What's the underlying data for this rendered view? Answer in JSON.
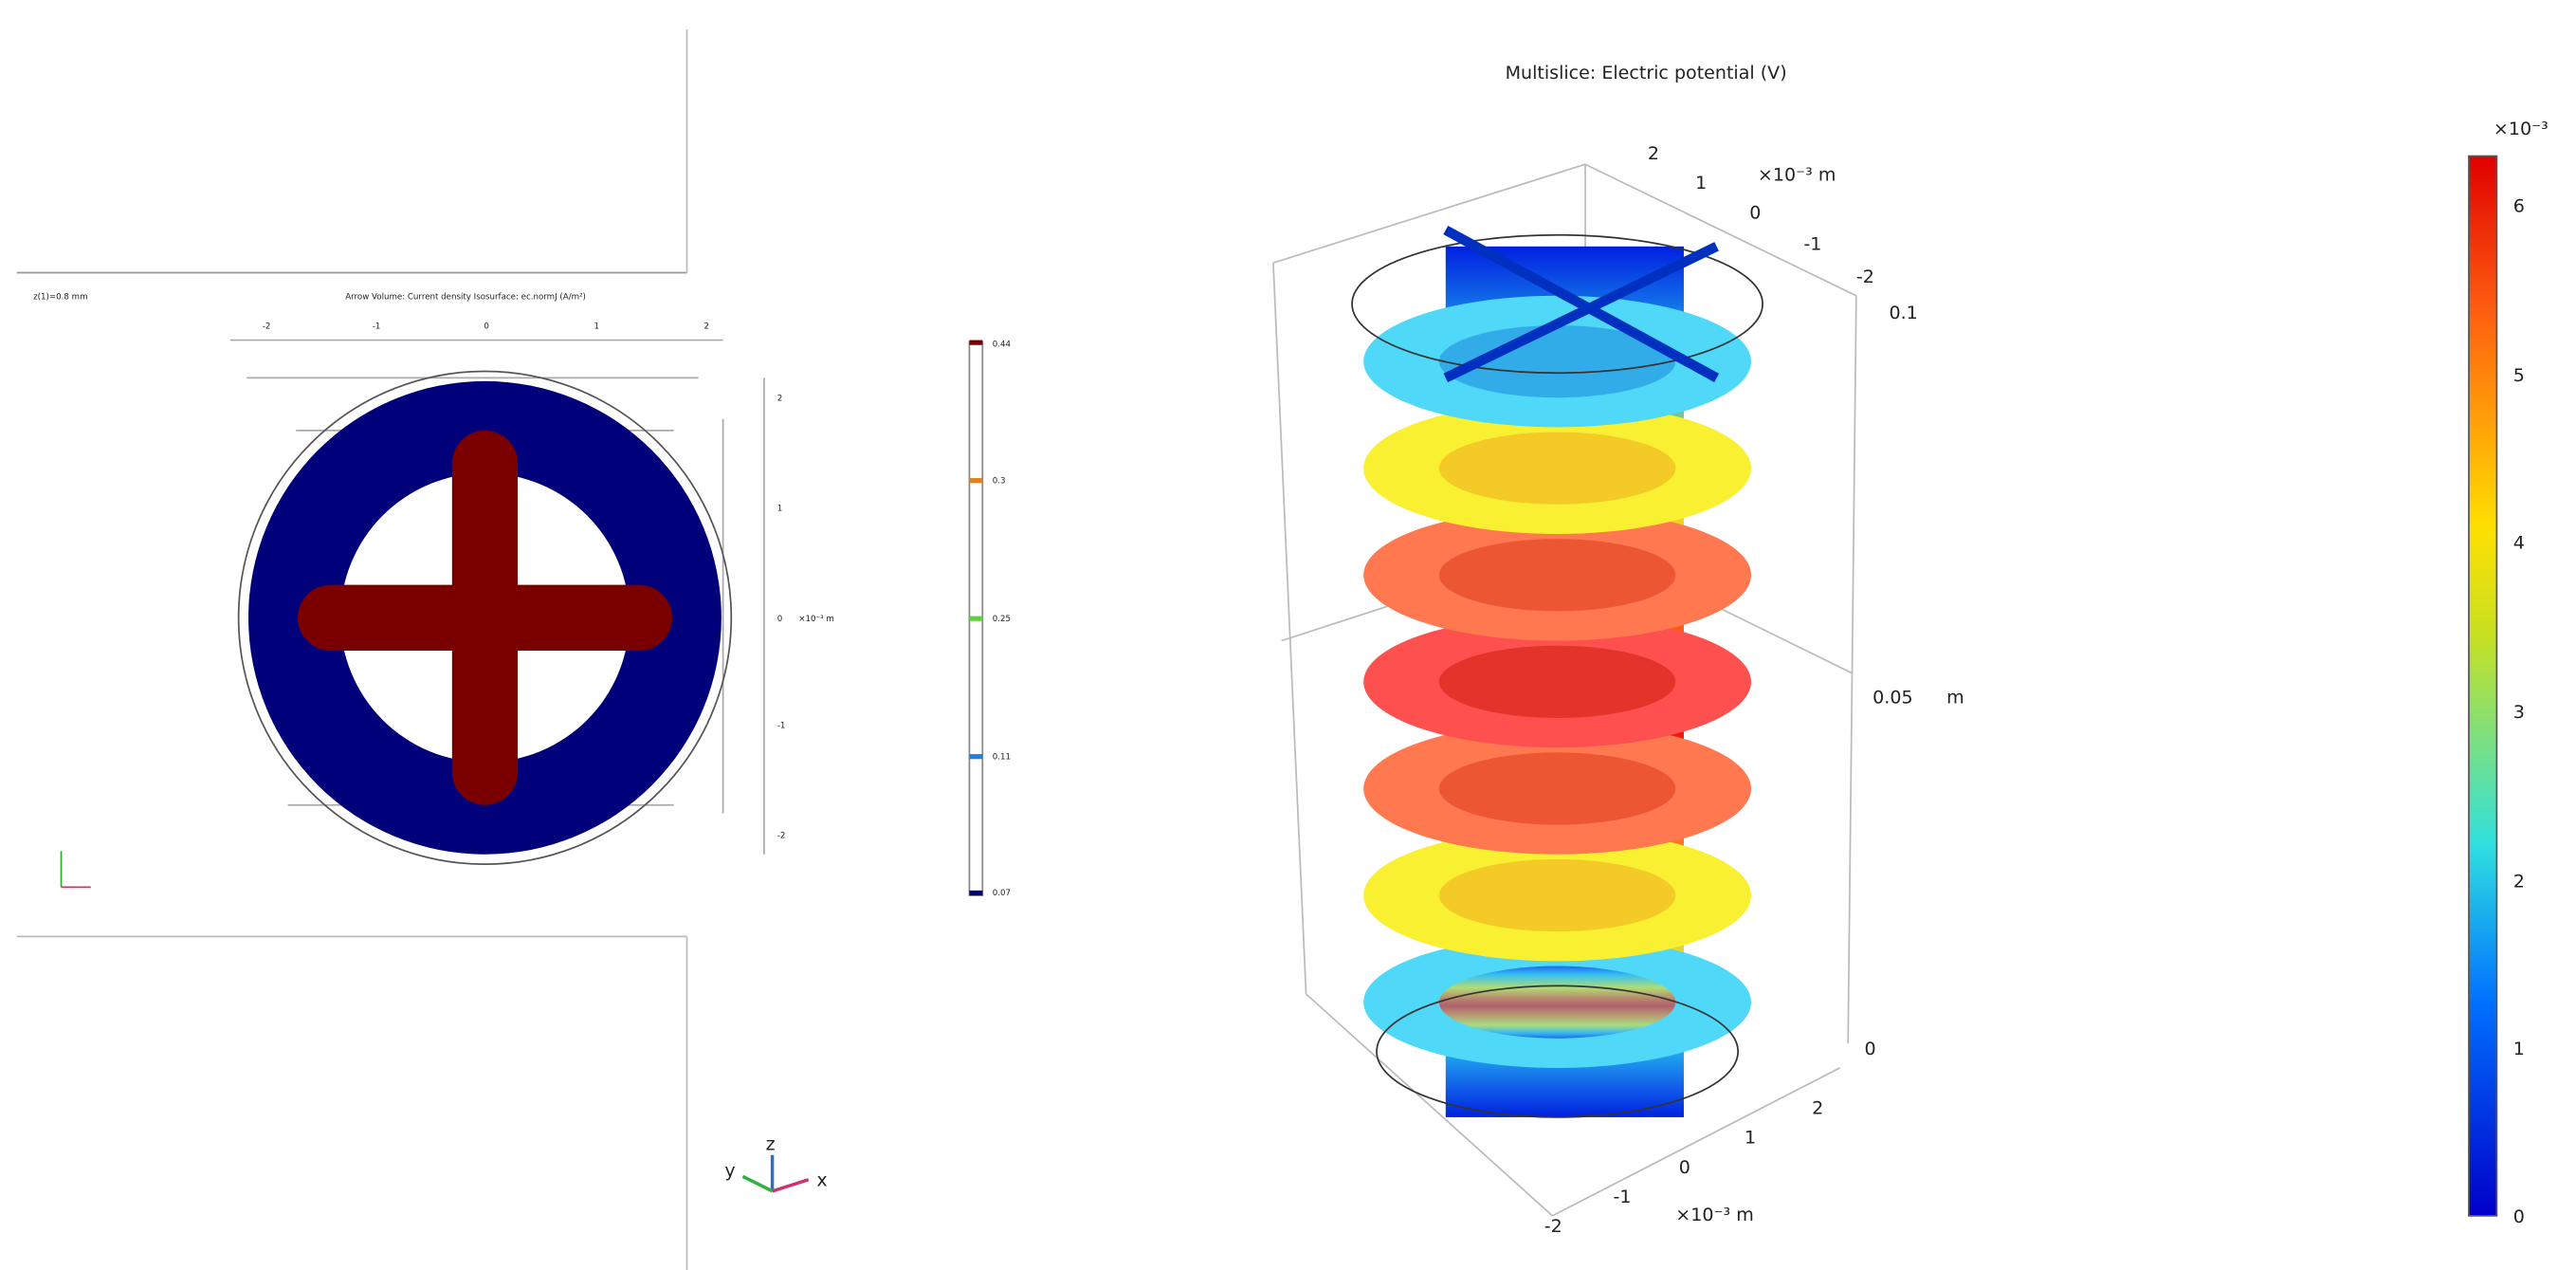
{
  "left_plot": {
    "corner_label": "z(1)=0.8 mm",
    "title": "Arrow Volume: Current density  Isosurface: ec.normJ (A/m²)",
    "axis_unit": "×10⁻³ m",
    "x_ticks": [
      "-2",
      "-1",
      "0",
      "1",
      "2"
    ],
    "y_ticks": [
      "2",
      "1",
      "0",
      "-1",
      "-2"
    ],
    "colorbar_ticks": [
      "0.44",
      "0.3",
      "0.25",
      "0.11",
      "0.07"
    ],
    "triad": {
      "z": "z",
      "y": "y",
      "x": "x"
    }
  },
  "right_plot": {
    "title": "Multislice: Electric potential (V)",
    "top_axis_ticks": [
      "2",
      "1",
      "0",
      "-1",
      "-2"
    ],
    "top_axis_unit": "×10⁻³ m",
    "z_ticks": [
      "0.1",
      "0.05",
      "0"
    ],
    "z_unit": "m",
    "bottom_axis_ticks": [
      "2",
      "1",
      "0",
      "-1",
      "-2"
    ],
    "bottom_axis_unit": "×10⁻³ m",
    "colorbar_exponent": "×10⁻³",
    "colorbar_ticks": [
      "6",
      "5",
      "4",
      "3",
      "2",
      "1",
      "0"
    ]
  }
}
